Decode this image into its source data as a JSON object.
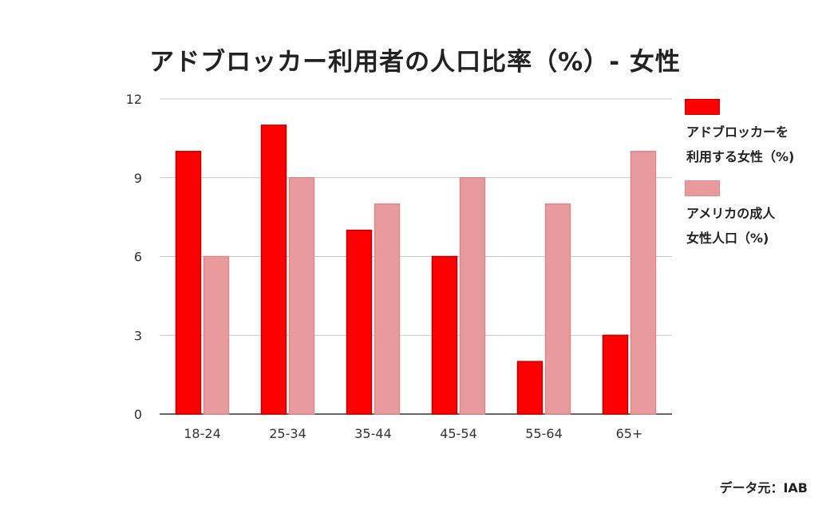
{
  "chart_data": {
    "type": "bar",
    "title": "アドブロッカー利用者の人口比率（%）- 女性",
    "categories": [
      "18-24",
      "25-34",
      "35-44",
      "45-54",
      "55-64",
      "65+"
    ],
    "series": [
      {
        "name": "アドブロッカーを\n利用する女性（%)",
        "color": "#ff0000",
        "values": [
          10,
          11,
          7,
          6,
          2,
          3
        ]
      },
      {
        "name": "アメリカの成人\n女性人口（%)",
        "color": "#e89a9c",
        "values": [
          6,
          9,
          8,
          9,
          8,
          10
        ]
      }
    ],
    "ylim": [
      0,
      12
    ],
    "yticks": [
      0,
      3,
      6,
      9,
      12
    ],
    "ytick_labels": [
      "0",
      "3",
      "6",
      "9",
      "12"
    ],
    "grid": true,
    "legend_position": "right",
    "xlabel": "",
    "ylabel": ""
  },
  "source": "データ元：IAB"
}
